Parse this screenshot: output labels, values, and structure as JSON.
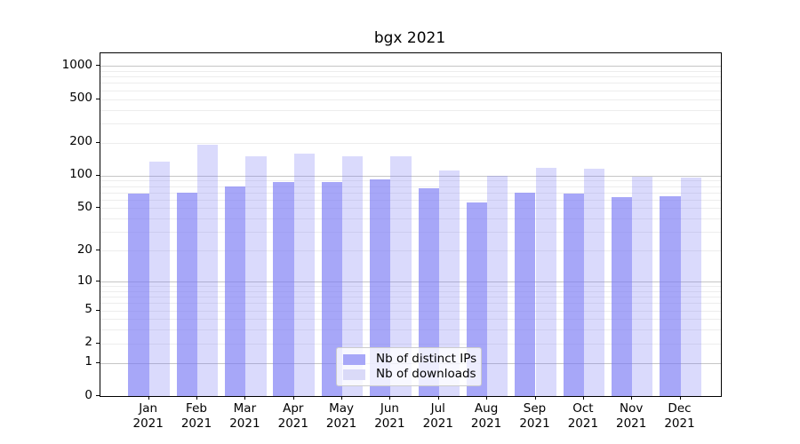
{
  "title": "bgx 2021",
  "chart_data": {
    "type": "bar",
    "title": "bgx 2021",
    "xlabel": "",
    "ylabel": "",
    "yscale": "log1p",
    "grid": "both",
    "legend_position": "lower center",
    "categories": [
      "Jan 2021",
      "Feb 2021",
      "Mar 2021",
      "Apr 2021",
      "May 2021",
      "Jun 2021",
      "Jul 2021",
      "Aug 2021",
      "Sep 2021",
      "Oct 2021",
      "Nov 2021",
      "Dec 2021"
    ],
    "yticks": [
      0,
      1,
      2,
      5,
      10,
      20,
      50,
      100,
      200,
      500,
      1000
    ],
    "ylim": [
      0,
      1250
    ],
    "series": [
      {
        "name": "Nb of distinct IPs",
        "color_rgba": "rgba(120,120,245,0.65)",
        "color_hex": "#a7a7f8",
        "values": [
          68,
          70,
          80,
          88,
          87,
          93,
          76,
          57,
          70,
          68,
          63,
          64
        ]
      },
      {
        "name": "Nb of downloads",
        "color_rgba": "rgba(120,120,245,0.27)",
        "color_hex": "#dadaf8",
        "values": [
          135,
          192,
          150,
          160,
          150,
          150,
          112,
          100,
          117,
          115,
          97,
          95
        ]
      }
    ]
  }
}
